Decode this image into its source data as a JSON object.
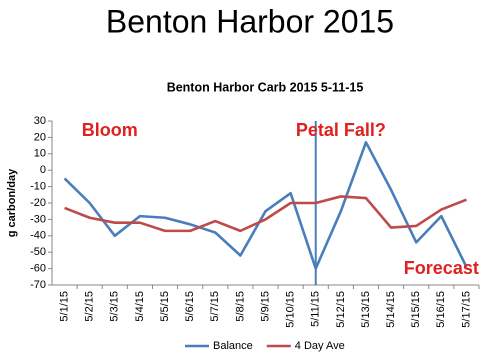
{
  "slide_title": "Benton Harbor 2015",
  "chart_data": {
    "type": "line",
    "title": "Benton Harbor Carb 2015 5-11-15",
    "y_label": "g carbon/day",
    "categories": [
      "5/1/15",
      "5/2/15",
      "5/3/15",
      "5/4/15",
      "5/5/15",
      "5/6/15",
      "5/7/15",
      "5/8/15",
      "5/9/15",
      "5/10/15",
      "5/11/15",
      "5/12/15",
      "5/13/15",
      "5/14/15",
      "5/15/15",
      "5/16/15",
      "5/17/15"
    ],
    "series": [
      {
        "name": "Balance",
        "color": "#4a7ebb",
        "values": [
          -5,
          -20,
          -40,
          -28,
          -29,
          -33,
          -38,
          -52,
          -25,
          -14,
          -60,
          -25,
          17,
          -12,
          -44,
          -28,
          -59
        ]
      },
      {
        "name": "4 Day Ave",
        "color": "#be4b48",
        "values": [
          -23,
          -29,
          -32,
          -32,
          -37,
          -37,
          -31,
          -37,
          -30,
          -20,
          -20,
          -16,
          -17,
          -35,
          -34,
          -24,
          -18
        ]
      }
    ],
    "ylim": [
      -70,
      30
    ],
    "yticks": [
      -70,
      -60,
      -50,
      -40,
      -30,
      -20,
      -10,
      0,
      10,
      20,
      30
    ],
    "grid": false,
    "legend": "bottom",
    "vertical_line_at": "5/11/15",
    "annotations": [
      "Bloom",
      "Petal Fall?",
      "Forecast"
    ]
  }
}
